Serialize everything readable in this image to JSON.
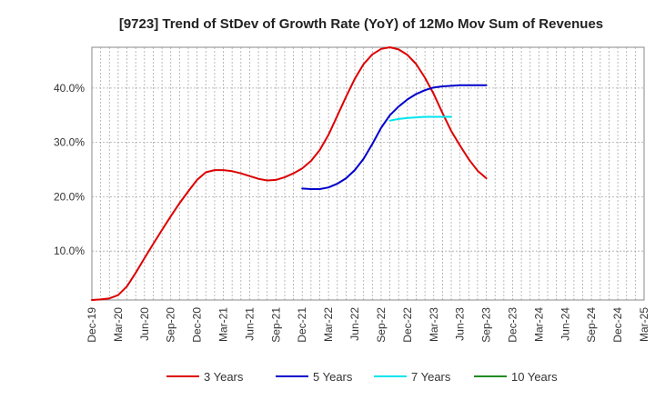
{
  "chart_data": {
    "type": "line",
    "title": "[9723]  Trend of StDev of Growth Rate (YoY) of 12Mo Mov Sum of Revenues",
    "xlabel": "",
    "ylabel": "",
    "x_ticks": [
      "Dec-19",
      "Mar-20",
      "Jun-20",
      "Sep-20",
      "Dec-20",
      "Mar-21",
      "Jun-21",
      "Sep-21",
      "Dec-21",
      "Mar-22",
      "Jun-22",
      "Sep-22",
      "Dec-22",
      "Mar-23",
      "Jun-23",
      "Sep-23",
      "Dec-23",
      "Mar-24",
      "Jun-24",
      "Sep-24",
      "Dec-24",
      "Mar-25"
    ],
    "y_ticks": [
      10,
      20,
      30,
      40
    ],
    "y_tick_labels": [
      "10.0%",
      "20.0%",
      "30.0%",
      "40.0%"
    ],
    "ylim": [
      1.0,
      47.5
    ],
    "grid": true,
    "legend_position": "bottom",
    "series": [
      {
        "name": "3 Years",
        "color": "#dd0000",
        "points": [
          [
            0,
            1.0
          ],
          [
            1,
            1.1
          ],
          [
            2,
            1.3
          ],
          [
            3,
            1.9
          ],
          [
            4,
            3.5
          ],
          [
            5,
            6.0
          ],
          [
            6,
            8.7
          ],
          [
            7,
            11.3
          ],
          [
            8,
            13.9
          ],
          [
            9,
            16.4
          ],
          [
            10,
            18.8
          ],
          [
            11,
            21.0
          ],
          [
            12,
            23.1
          ],
          [
            13,
            24.5
          ],
          [
            14,
            24.9
          ],
          [
            15,
            24.9
          ],
          [
            16,
            24.7
          ],
          [
            17,
            24.3
          ],
          [
            18,
            23.8
          ],
          [
            19,
            23.3
          ],
          [
            20,
            23.0
          ],
          [
            21,
            23.1
          ],
          [
            22,
            23.6
          ],
          [
            23,
            24.3
          ],
          [
            24,
            25.2
          ],
          [
            25,
            26.6
          ],
          [
            26,
            28.6
          ],
          [
            27,
            31.4
          ],
          [
            28,
            34.9
          ],
          [
            29,
            38.4
          ],
          [
            30,
            41.7
          ],
          [
            31,
            44.4
          ],
          [
            32,
            46.2
          ],
          [
            33,
            47.2
          ],
          [
            34,
            47.5
          ],
          [
            35,
            47.1
          ],
          [
            36,
            46.1
          ],
          [
            37,
            44.4
          ],
          [
            38,
            41.9
          ],
          [
            39,
            38.9
          ],
          [
            40,
            35.4
          ],
          [
            41,
            32.1
          ],
          [
            42,
            29.4
          ],
          [
            43,
            26.9
          ],
          [
            44,
            24.8
          ],
          [
            45,
            23.4
          ]
        ]
      },
      {
        "name": "5 Years",
        "color": "#0000cc",
        "points": [
          [
            24,
            21.5
          ],
          [
            25,
            21.4
          ],
          [
            26,
            21.4
          ],
          [
            27,
            21.7
          ],
          [
            28,
            22.4
          ],
          [
            29,
            23.4
          ],
          [
            30,
            24.9
          ],
          [
            31,
            27.0
          ],
          [
            32,
            29.7
          ],
          [
            33,
            32.7
          ],
          [
            34,
            35.0
          ],
          [
            35,
            36.6
          ],
          [
            36,
            37.9
          ],
          [
            37,
            38.9
          ],
          [
            38,
            39.6
          ],
          [
            39,
            40.1
          ],
          [
            40,
            40.3
          ],
          [
            41,
            40.4
          ],
          [
            42,
            40.5
          ],
          [
            43,
            40.5
          ],
          [
            44,
            40.5
          ],
          [
            45,
            40.5
          ]
        ]
      },
      {
        "name": "7 Years",
        "color": "#00e5ee",
        "points": [
          [
            34,
            34.0
          ],
          [
            35,
            34.3
          ],
          [
            36,
            34.5
          ],
          [
            37,
            34.6
          ],
          [
            38,
            34.7
          ],
          [
            39,
            34.7
          ],
          [
            40,
            34.7
          ],
          [
            41,
            34.7
          ]
        ]
      },
      {
        "name": "10 Years",
        "color": "#228b22",
        "points": []
      }
    ]
  }
}
